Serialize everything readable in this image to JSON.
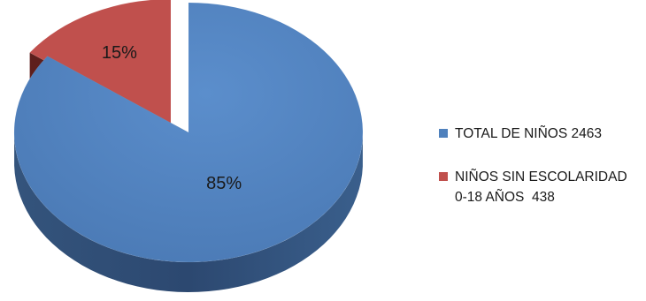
{
  "chart_data": {
    "type": "pie",
    "style": "3d-exploded",
    "slices": [
      {
        "label": "TOTAL DE NIÑOS 2463",
        "value": 85,
        "value_label": "85%",
        "color": "#4f81bd",
        "side_color": "#2f4d73",
        "exploded": false
      },
      {
        "label": "NIÑOS SIN ESCOLARIDAD 0-18 AÑOS  438",
        "value": 15,
        "value_label": "15%",
        "color": "#c0504d",
        "side_color": "#5e1f1c",
        "exploded": true
      }
    ],
    "legend_position": "right"
  },
  "legend": {
    "items": [
      {
        "lines": [
          "TOTAL DE NIÑOS 2463"
        ],
        "color": "#4f81bd"
      },
      {
        "lines": [
          "NIÑOS SIN ESCOLARIDAD",
          "0-18 AÑOS  438"
        ],
        "color": "#c0504d"
      }
    ]
  }
}
